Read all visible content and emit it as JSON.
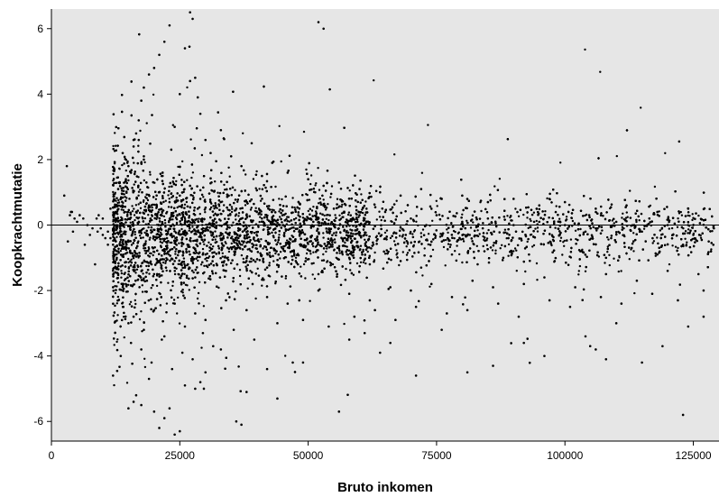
{
  "chart_data": {
    "type": "scatter",
    "title": "",
    "xlabel": "Bruto inkomen",
    "ylabel": "Koopkrachtmutatie",
    "xlim": [
      0,
      130000
    ],
    "ylim": [
      -6.6,
      6.6
    ],
    "x_ticks": [
      0,
      25000,
      50000,
      75000,
      100000,
      125000
    ],
    "x_tick_labels": [
      "0",
      "25000",
      "50000",
      "75000",
      "100000",
      "125000"
    ],
    "y_ticks": [
      -6,
      -4,
      -2,
      0,
      2,
      4,
      6
    ],
    "y_tick_labels": [
      "-6",
      "-4",
      "-2",
      "0",
      "2",
      "4",
      "6"
    ],
    "reference_line_y": 0,
    "grid": false,
    "legend": "none",
    "colors": {
      "plot_background": "#e6e6e6",
      "points": "#000000",
      "axes": "#000000"
    },
    "series": [
      {
        "points_x": [
          2500,
          3200,
          3600,
          4000,
          4200,
          5000,
          5500,
          6200,
          7000,
          8000,
          8500,
          9200,
          10000,
          10500,
          11000,
          11500,
          12000,
          12500,
          12800,
          13000,
          13500,
          14000,
          14500,
          15000,
          15500,
          16000,
          16500,
          17000,
          17500,
          18000,
          18500,
          19000,
          19500,
          20000,
          21000,
          22000,
          23000,
          24000,
          25000,
          26000,
          27000,
          28000,
          29000,
          30000,
          32000,
          34000,
          36000,
          38000,
          40000,
          42000,
          45000,
          48000,
          50000,
          52000,
          55000,
          58000,
          60000,
          62000,
          65000,
          68000,
          70000,
          72000,
          75000,
          78000,
          80000,
          83000,
          85000,
          88000,
          90000,
          93000,
          95000,
          98000,
          100000,
          103000,
          105000,
          108000,
          110000,
          113000,
          115000,
          118000,
          120000,
          123000,
          125000,
          128000,
          17000,
          17500,
          18000,
          16000,
          19000,
          20000,
          21000,
          22000,
          23000,
          26000,
          27000,
          27500,
          28000,
          28500,
          29000,
          25000,
          24000,
          30000,
          31000,
          33000,
          35000,
          37000,
          39000,
          41000,
          43000,
          46000,
          50000,
          53000,
          56000,
          60000,
          64000,
          68000,
          72000,
          76000,
          80000,
          85000,
          90000,
          95000,
          100000,
          106000,
          112000,
          118000,
          124000,
          14000,
          15000,
          16000,
          18000,
          20000,
          22000,
          24000,
          26000,
          28000,
          30000,
          34000,
          38000,
          42000,
          46000,
          52000,
          58000,
          62000,
          66000,
          70000,
          74000,
          78000,
          82000,
          86000,
          92000,
          96000,
          102000,
          108000,
          114000,
          120000,
          126000,
          13500,
          15500,
          17500,
          19500,
          21500,
          23500,
          25500,
          27500,
          29500,
          31500,
          35500,
          39500,
          44000,
          49000,
          54000,
          59000,
          63000,
          67000,
          71000,
          77000,
          81000,
          87000,
          91000,
          97000,
          101000,
          107000,
          111000,
          117000,
          122000,
          127000,
          13000,
          14500,
          16500,
          18500,
          20500,
          22500,
          24500,
          26500,
          28500,
          31000,
          36000,
          41000,
          47000,
          51000,
          57000,
          61000,
          69000,
          73000,
          79000,
          84000,
          89000,
          94000,
          99000,
          104000,
          109000,
          116000,
          121000,
          129000,
          18000,
          27000,
          52000,
          53000,
          37000,
          36000,
          24000,
          25000,
          22000,
          12000,
          16500,
          17500,
          28000,
          29000,
          30000,
          26000,
          23000,
          44000,
          47000,
          64000,
          66000,
          86000,
          96000,
          106000,
          108000,
          123000,
          15000,
          16000,
          21000,
          20000,
          19000,
          38000,
          42000,
          33000,
          49000,
          56000,
          58000,
          61000,
          71000,
          76000,
          81000,
          92000,
          104000,
          110000,
          115000,
          119000,
          124000,
          127000,
          14000,
          13000,
          12500,
          11500,
          11000,
          10000,
          9000,
          3000,
          3800,
          4500,
          6500,
          7500,
          8800,
          9600
        ],
        "points_y": [
          0.9,
          -0.5,
          0.3,
          0.4,
          -0.2,
          0.1,
          0.3,
          0.2,
          0.0,
          -0.1,
          -1.2,
          0.3,
          0.2,
          -0.4,
          -0.2,
          0.5,
          -0.6,
          0.4,
          -1.3,
          1.1,
          0.8,
          -0.9,
          1.4,
          1.8,
          1.6,
          2.4,
          2.8,
          2.6,
          1.9,
          2.1,
          1.3,
          0.6,
          -1.2,
          -1.5,
          1.0,
          -0.8,
          0.7,
          -1.1,
          0.9,
          -1.3,
          1.2,
          -1.6,
          0.8,
          -0.9,
          0.6,
          -1.4,
          0.5,
          -1.1,
          0.4,
          -1.3,
          0.3,
          -1.2,
          0.2,
          -1.5,
          0.5,
          -1.0,
          0.3,
          -1.2,
          0.4,
          -1.1,
          0.2,
          -1.3,
          0.3,
          -0.9,
          0.1,
          -1.2,
          0.2,
          -1.0,
          0.0,
          -0.9,
          0.1,
          -1.1,
          0.0,
          -0.8,
          -0.1,
          -1.0,
          0.1,
          -0.7,
          -0.2,
          -0.9,
          0.0,
          -0.6,
          -0.3,
          -0.5,
          3.2,
          3.8,
          4.2,
          2.6,
          4.6,
          4.8,
          5.2,
          5.6,
          6.1,
          5.4,
          6.5,
          6.3,
          4.5,
          3.9,
          3.4,
          4.0,
          3.0,
          2.6,
          2.2,
          2.9,
          2.1,
          1.8,
          2.5,
          1.5,
          1.9,
          1.6,
          1.4,
          1.2,
          1.3,
          1.1,
          1.0,
          0.9,
          1.1,
          0.8,
          0.9,
          0.7,
          0.8,
          0.6,
          0.7,
          0.5,
          0.6,
          0.4,
          0.5,
          -2.5,
          -3.0,
          -2.8,
          -3.2,
          -2.6,
          -3.4,
          -2.4,
          -3.1,
          -2.7,
          -2.9,
          -2.3,
          -2.6,
          -2.2,
          -2.4,
          -2.0,
          -2.1,
          -2.3,
          -1.9,
          -2.0,
          -1.8,
          -2.2,
          -1.7,
          -1.9,
          -1.8,
          -1.6,
          -1.9,
          -1.5,
          -1.7,
          -1.4,
          -1.5,
          -4.0,
          -3.6,
          -3.8,
          -4.2,
          -3.5,
          -4.4,
          -3.9,
          -4.1,
          -3.3,
          -3.7,
          -3.2,
          -3.5,
          -3.0,
          -2.9,
          -3.1,
          -2.8,
          -2.6,
          -2.9,
          -2.5,
          -2.7,
          -2.6,
          -2.4,
          -2.8,
          -2.3,
          -2.5,
          -2.2,
          -2.4,
          -2.1,
          -2.3,
          -2.0,
          -0.8,
          -0.5,
          0.4,
          -0.3,
          0.6,
          -0.4,
          0.3,
          -0.6,
          0.5,
          -0.2,
          -0.7,
          0.2,
          -0.5,
          0.1,
          -0.4,
          0.2,
          -0.3,
          0.0,
          -0.5,
          -0.1,
          -0.4,
          0.1,
          -0.3,
          -0.2,
          -0.4,
          0.0,
          -0.3,
          -0.1,
          2.0,
          4.4,
          6.2,
          6.0,
          -6.1,
          -6.0,
          -6.4,
          -6.3,
          -5.9,
          -4.6,
          -5.2,
          -5.5,
          -5.0,
          -4.8,
          -4.5,
          -4.9,
          -5.6,
          -5.3,
          -4.2,
          -3.9,
          -3.6,
          -4.3,
          -4.0,
          -3.8,
          -4.1,
          -5.8,
          -5.6,
          -5.4,
          -6.2,
          -5.7,
          -4.7,
          -5.1,
          -4.4,
          -3.8,
          -4.2,
          -5.7,
          -3.5,
          -3.3,
          -4.6,
          -3.2,
          -4.5,
          -3.6,
          -3.4,
          -3.0,
          -4.2,
          -3.7,
          -3.1,
          -2.8,
          -1.8,
          -1.5,
          -0.9,
          -0.4,
          -0.6,
          -0.3,
          -0.2,
          1.8,
          0.4,
          0.2,
          -0.6,
          -0.3,
          0.2,
          -0.1
        ]
      }
    ]
  }
}
